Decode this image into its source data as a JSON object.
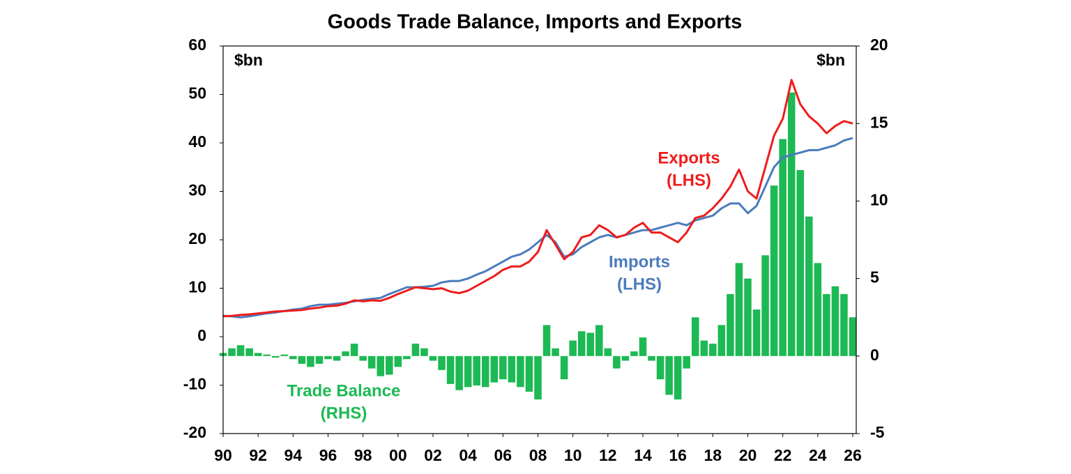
{
  "chart_data": {
    "type": "line",
    "title": "Goods Trade Balance, Imports and Exports",
    "y_unit": "$bn",
    "y2_unit": "$bn",
    "x": [
      1990,
      1990.5,
      1991,
      1991.5,
      1992,
      1992.5,
      1993,
      1993.5,
      1994,
      1994.5,
      1995,
      1995.5,
      1996,
      1996.5,
      1997,
      1997.5,
      1998,
      1998.5,
      1999,
      1999.5,
      2000,
      2000.5,
      2001,
      2001.5,
      2002,
      2002.5,
      2003,
      2003.5,
      2004,
      2004.5,
      2005,
      2005.5,
      2006,
      2006.5,
      2007,
      2007.5,
      2008,
      2008.5,
      2009,
      2009.5,
      2010,
      2010.5,
      2011,
      2011.5,
      2012,
      2012.5,
      2013,
      2013.5,
      2014,
      2014.5,
      2015,
      2015.5,
      2016,
      2016.5,
      2017,
      2017.5,
      2018,
      2018.5,
      2019,
      2019.5,
      2020,
      2020.5,
      2021,
      2021.5,
      2022,
      2022.5,
      2023,
      2023.5,
      2024,
      2024.5,
      2025,
      2025.5,
      2026
    ],
    "series": [
      {
        "name": "Trade Balance",
        "note": "(RHS)",
        "type": "bar",
        "axis": "y2",
        "color": "#1db954",
        "values": [
          0.2,
          0.5,
          0.7,
          0.5,
          0.2,
          0.1,
          -0.1,
          0.1,
          -0.2,
          -0.5,
          -0.7,
          -0.5,
          -0.2,
          -0.3,
          0.3,
          0.8,
          -0.3,
          -0.8,
          -1.3,
          -1.2,
          -0.7,
          -0.2,
          0.8,
          0.5,
          -0.3,
          -0.9,
          -1.8,
          -2.2,
          -2.0,
          -1.9,
          -2.0,
          -1.7,
          -1.5,
          -1.7,
          -2.0,
          -2.3,
          -2.8,
          2.0,
          0.5,
          -1.5,
          1.0,
          1.6,
          1.5,
          2.0,
          0.5,
          -0.8,
          -0.3,
          0.3,
          1.2,
          -0.3,
          -1.5,
          -2.5,
          -2.8,
          -0.8,
          2.5,
          1.0,
          0.8,
          2.0,
          4.0,
          6.0,
          5.0,
          3.0,
          6.5,
          11.0,
          14.0,
          17.0,
          12.0,
          9.0,
          6.0,
          4.0,
          4.5,
          4.0,
          2.5
        ]
      },
      {
        "name": "Imports",
        "note": "(LHS)",
        "type": "line",
        "color": "#4a7bbd",
        "values": [
          4.3,
          4.2,
          4.0,
          4.2,
          4.5,
          4.8,
          5.0,
          5.3,
          5.6,
          5.8,
          6.3,
          6.6,
          6.6,
          6.8,
          7.0,
          7.3,
          7.6,
          7.8,
          8.0,
          8.8,
          9.5,
          10.2,
          10.2,
          10.3,
          10.5,
          11.2,
          11.5,
          11.5,
          12.0,
          12.8,
          13.5,
          14.5,
          15.5,
          16.5,
          17.0,
          18.0,
          19.5,
          21.0,
          19.5,
          16.5,
          17.0,
          18.5,
          19.5,
          20.5,
          21.0,
          20.5,
          21.0,
          21.5,
          22.0,
          22.0,
          22.5,
          23.0,
          23.5,
          23.0,
          24.0,
          24.5,
          25.0,
          26.5,
          27.5,
          27.5,
          25.5,
          27.0,
          31.0,
          35.0,
          37.0,
          37.5,
          38.0,
          38.5,
          38.5,
          39.0,
          39.5,
          40.5,
          41.0
        ]
      },
      {
        "name": "Exports",
        "note": "(LHS)",
        "type": "line",
        "color": "#ee1c1c",
        "values": [
          4.2,
          4.3,
          4.5,
          4.6,
          4.8,
          5.0,
          5.2,
          5.3,
          5.4,
          5.5,
          5.8,
          6.0,
          6.3,
          6.4,
          6.8,
          7.5,
          7.3,
          7.5,
          7.4,
          8.0,
          8.8,
          9.5,
          10.2,
          10.0,
          9.8,
          10.0,
          9.3,
          9.0,
          9.5,
          10.5,
          11.5,
          12.5,
          13.8,
          14.5,
          14.5,
          15.5,
          17.5,
          22.0,
          19.0,
          16.0,
          17.5,
          20.5,
          21.0,
          23.0,
          22.0,
          20.5,
          21.0,
          22.5,
          23.5,
          21.5,
          21.5,
          20.5,
          19.5,
          21.5,
          24.5,
          25.0,
          26.5,
          28.5,
          31.0,
          34.5,
          30.0,
          28.5,
          35.0,
          41.5,
          45.0,
          53.0,
          48.0,
          45.5,
          44.0,
          42.0,
          43.5,
          44.5,
          44.0
        ]
      }
    ],
    "xlim": [
      1990,
      2026.2
    ],
    "xticks": [
      {
        "value": 1990,
        "label": "90"
      },
      {
        "value": 1992,
        "label": "92"
      },
      {
        "value": 1994,
        "label": "94"
      },
      {
        "value": 1996,
        "label": "96"
      },
      {
        "value": 1998,
        "label": "98"
      },
      {
        "value": 2000,
        "label": "00"
      },
      {
        "value": 2002,
        "label": "02"
      },
      {
        "value": 2004,
        "label": "04"
      },
      {
        "value": 2006,
        "label": "06"
      },
      {
        "value": 2008,
        "label": "08"
      },
      {
        "value": 2010,
        "label": "10"
      },
      {
        "value": 2012,
        "label": "12"
      },
      {
        "value": 2014,
        "label": "14"
      },
      {
        "value": 2016,
        "label": "16"
      },
      {
        "value": 2018,
        "label": "18"
      },
      {
        "value": 2020,
        "label": "20"
      },
      {
        "value": 2022,
        "label": "22"
      },
      {
        "value": 2024,
        "label": "24"
      },
      {
        "value": 2026,
        "label": "26"
      }
    ],
    "ylim": [
      -20,
      60
    ],
    "yticks": [
      -20,
      -10,
      0,
      10,
      20,
      30,
      40,
      50,
      60
    ],
    "y2lim": [
      -5,
      20
    ],
    "y2ticks": [
      -5,
      0,
      5,
      10,
      15,
      20
    ],
    "grid": false
  }
}
